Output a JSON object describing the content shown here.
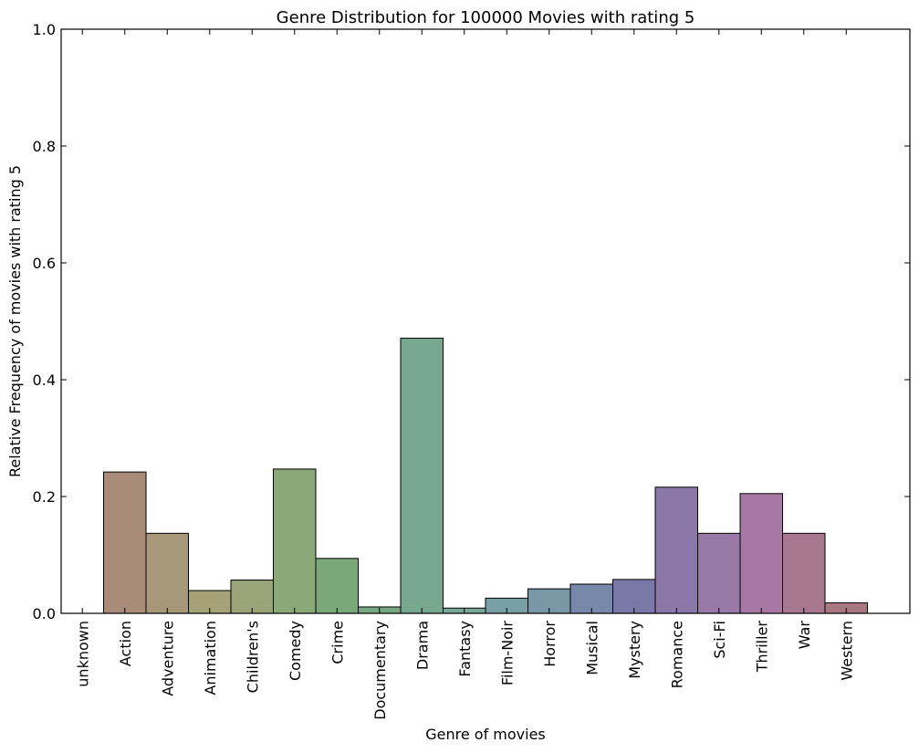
{
  "chart_data": {
    "type": "bar",
    "title": "Genre Distribution for 100000 Movies with rating 5",
    "xlabel": "Genre of movies",
    "ylabel": "Relative Frequency of movies with rating 5",
    "ylim": [
      0,
      1.0
    ],
    "yticks": [
      "0.0",
      "0.2",
      "0.4",
      "0.6",
      "0.8",
      "1.0"
    ],
    "categories": [
      "unknown",
      "Action",
      "Adventure",
      "Animation",
      "Children's",
      "Comedy",
      "Crime",
      "Documentary",
      "Drama",
      "Fantasy",
      "Film-Noir",
      "Horror",
      "Musical",
      "Mystery",
      "Romance",
      "Sci-Fi",
      "Thriller",
      "War",
      "Western"
    ],
    "values": [
      0.0,
      0.242,
      0.137,
      0.039,
      0.057,
      0.247,
      0.094,
      0.011,
      0.471,
      0.009,
      0.026,
      0.042,
      0.05,
      0.058,
      0.216,
      0.137,
      0.205,
      0.137,
      0.018
    ],
    "colors": [
      "#a88c89",
      "#a88c79",
      "#a69878",
      "#a6a278",
      "#99a578",
      "#8ba878",
      "#7aa879",
      "#78a882",
      "#78a890",
      "#78a89a",
      "#78a0a4",
      "#7898a8",
      "#7888a8",
      "#7a78a8",
      "#8b78a8",
      "#9a78a8",
      "#a878a4",
      "#a87890",
      "#a87880"
    ],
    "grid": false
  }
}
